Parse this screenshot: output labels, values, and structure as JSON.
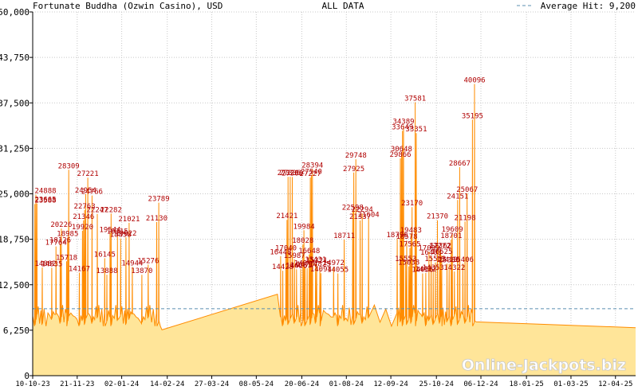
{
  "header": {
    "title": "Fortunate Buddha (Ozwin Casino), USD",
    "center_label": "ALL DATA",
    "legend_label": "Average Hit: 9,200"
  },
  "watermark": "Online-Jackpots.biz",
  "chart_data": {
    "type": "area",
    "ylim": [
      0,
      50000
    ],
    "yticks": [
      0,
      6250,
      12500,
      18750,
      25000,
      31250,
      37500,
      43750,
      50000
    ],
    "ytick_labels": [
      "0",
      "6,250",
      "12,500",
      "18,750",
      "25,000",
      "31,250",
      "37,500",
      "43,750",
      "50,000"
    ],
    "xlim": [
      "2023-10-10",
      "2025-05-01"
    ],
    "xticks": [
      {
        "date": "2023-10-10",
        "label": "10-10-23"
      },
      {
        "date": "2023-11-21",
        "label": "21-11-23"
      },
      {
        "date": "2024-01-02",
        "label": "02-01-24"
      },
      {
        "date": "2024-02-14",
        "label": "14-02-24"
      },
      {
        "date": "2024-03-27",
        "label": "27-03-24"
      },
      {
        "date": "2024-05-08",
        "label": "08-05-24"
      },
      {
        "date": "2024-06-20",
        "label": "20-06-24"
      },
      {
        "date": "2024-08-01",
        "label": "01-08-24"
      },
      {
        "date": "2024-09-12",
        "label": "12-09-24"
      },
      {
        "date": "2024-10-25",
        "label": "25-10-24"
      },
      {
        "date": "2024-12-06",
        "label": "06-12-24"
      },
      {
        "date": "2025-01-18",
        "label": "18-01-25"
      },
      {
        "date": "2025-03-01",
        "label": "01-03-25"
      },
      {
        "date": "2025-04-12",
        "label": "12-04-25"
      }
    ],
    "average_hit": 9200,
    "grid": true,
    "colors": {
      "line": "#ff8c00",
      "fill": "#ffe599",
      "average": "#5b8fb0",
      "peak_label": "#b00000",
      "grid": "#c8c8c8"
    },
    "peaks": [
      {
        "date": "2023-10-12",
        "value": 23588,
        "label": "23588"
      },
      {
        "date": "2023-10-13",
        "value": 24888,
        "label": "24888"
      },
      {
        "date": "2023-10-14",
        "value": 23665,
        "label": "23665"
      },
      {
        "date": "2023-10-19",
        "value": 14882,
        "label": "14882"
      },
      {
        "date": "2023-10-28",
        "value": 14835,
        "label": "14835"
      },
      {
        "date": "2023-11-01",
        "value": 17764,
        "label": "17764"
      },
      {
        "date": "2023-11-05",
        "value": 18126,
        "label": "18126"
      },
      {
        "date": "2023-11-06",
        "value": 20226,
        "label": "20226"
      },
      {
        "date": "2023-11-11",
        "value": 15718,
        "label": "15718"
      },
      {
        "date": "2023-11-12",
        "value": 18985,
        "label": "18985"
      },
      {
        "date": "2023-11-13",
        "value": 28309,
        "label": "28309"
      },
      {
        "date": "2023-11-23",
        "value": 14167,
        "label": "14167"
      },
      {
        "date": "2023-11-26",
        "value": 19920,
        "label": "19920"
      },
      {
        "date": "2023-11-27",
        "value": 21346,
        "label": "21346"
      },
      {
        "date": "2023-11-28",
        "value": 22763,
        "label": "22763"
      },
      {
        "date": "2023-11-29",
        "value": 24954,
        "label": "24954"
      },
      {
        "date": "2023-12-01",
        "value": 27221,
        "label": "27221"
      },
      {
        "date": "2023-12-05",
        "value": 24766,
        "label": "24766"
      },
      {
        "date": "2023-12-10",
        "value": 22247,
        "label": "22247"
      },
      {
        "date": "2023-12-17",
        "value": 16145,
        "label": "16145"
      },
      {
        "date": "2023-12-19",
        "value": 13888,
        "label": "13888"
      },
      {
        "date": "2023-12-22",
        "value": 19544,
        "label": "19544"
      },
      {
        "date": "2023-12-23",
        "value": 22282,
        "label": "22282"
      },
      {
        "date": "2023-12-29",
        "value": 19315,
        "label": "19315"
      },
      {
        "date": "2024-01-01",
        "value": 18858,
        "label": "18858"
      },
      {
        "date": "2024-01-06",
        "value": 19022,
        "label": "19022"
      },
      {
        "date": "2024-01-09",
        "value": 21021,
        "label": "21021"
      },
      {
        "date": "2024-01-12",
        "value": 14944,
        "label": "14944"
      },
      {
        "date": "2024-01-21",
        "value": 13870,
        "label": "13870"
      },
      {
        "date": "2024-01-27",
        "value": 15276,
        "label": "15276"
      },
      {
        "date": "2024-02-04",
        "value": 21130,
        "label": "21130"
      },
      {
        "date": "2024-02-06",
        "value": 23789,
        "label": "23789"
      },
      {
        "date": "2024-05-31",
        "value": 16448,
        "label": "16448"
      },
      {
        "date": "2024-06-02",
        "value": 14428,
        "label": "14428"
      },
      {
        "date": "2024-06-05",
        "value": 17040,
        "label": "17040"
      },
      {
        "date": "2024-06-06",
        "value": 21421,
        "label": "21421"
      },
      {
        "date": "2024-06-07",
        "value": 27326,
        "label": "27326"
      },
      {
        "date": "2024-06-09",
        "value": 27336,
        "label": "27336"
      },
      {
        "date": "2024-06-11",
        "value": 27306,
        "label": "27306"
      },
      {
        "date": "2024-06-13",
        "value": 15987,
        "label": "15987"
      },
      {
        "date": "2024-06-15",
        "value": 14626,
        "label": "14626"
      },
      {
        "date": "2024-06-19",
        "value": 14681,
        "label": "14681"
      },
      {
        "date": "2024-06-21",
        "value": 18028,
        "label": "18028"
      },
      {
        "date": "2024-06-22",
        "value": 19984,
        "label": "19984"
      },
      {
        "date": "2024-06-23",
        "value": 14941,
        "label": "14941"
      },
      {
        "date": "2024-06-25",
        "value": 14777,
        "label": "14777"
      },
      {
        "date": "2024-06-27",
        "value": 16648,
        "label": "16648"
      },
      {
        "date": "2024-06-28",
        "value": 27227,
        "label": "27227"
      },
      {
        "date": "2024-06-29",
        "value": 27540,
        "label": "27540"
      },
      {
        "date": "2024-06-30",
        "value": 28394,
        "label": "28394"
      },
      {
        "date": "2024-07-03",
        "value": 15431,
        "label": "15431"
      },
      {
        "date": "2024-07-04",
        "value": 15321,
        "label": "15321"
      },
      {
        "date": "2024-07-07",
        "value": 14825,
        "label": "14825"
      },
      {
        "date": "2024-07-08",
        "value": 14094,
        "label": "14094"
      },
      {
        "date": "2024-07-20",
        "value": 14972,
        "label": "14972"
      },
      {
        "date": "2024-07-24",
        "value": 14055,
        "label": "14055"
      },
      {
        "date": "2024-07-30",
        "value": 18711,
        "label": "18711"
      },
      {
        "date": "2024-08-07",
        "value": 22598,
        "label": "22598"
      },
      {
        "date": "2024-08-08",
        "value": 27925,
        "label": "27925"
      },
      {
        "date": "2024-08-10",
        "value": 29748,
        "label": "29748"
      },
      {
        "date": "2024-08-14",
        "value": 21337,
        "label": "21337"
      },
      {
        "date": "2024-08-16",
        "value": 22294,
        "label": "22294"
      },
      {
        "date": "2024-08-22",
        "value": 21604,
        "label": "21604"
      },
      {
        "date": "2024-09-18",
        "value": 18796,
        "label": "18796"
      },
      {
        "date": "2024-09-21",
        "value": 29866,
        "label": "29866"
      },
      {
        "date": "2024-09-22",
        "value": 30648,
        "label": "30648"
      },
      {
        "date": "2024-09-23",
        "value": 33649,
        "label": "33649"
      },
      {
        "date": "2024-09-24",
        "value": 34389,
        "label": "34389"
      },
      {
        "date": "2024-09-26",
        "value": 15553,
        "label": "15553"
      },
      {
        "date": "2024-09-27",
        "value": 18578,
        "label": "18578"
      },
      {
        "date": "2024-09-29",
        "value": 15038,
        "label": "15038"
      },
      {
        "date": "2024-09-30",
        "value": 17565,
        "label": "17565"
      },
      {
        "date": "2024-10-01",
        "value": 19483,
        "label": "19483"
      },
      {
        "date": "2024-10-02",
        "value": 23170,
        "label": "23170"
      },
      {
        "date": "2024-10-05",
        "value": 37581,
        "label": "37581"
      },
      {
        "date": "2024-10-06",
        "value": 33351,
        "label": "33351"
      },
      {
        "date": "2024-10-12",
        "value": 14056,
        "label": "14056"
      },
      {
        "date": "2024-10-15",
        "value": 14122,
        "label": "14122"
      },
      {
        "date": "2024-10-18",
        "value": 17039,
        "label": "17039"
      },
      {
        "date": "2024-10-20",
        "value": 16403,
        "label": "16403"
      },
      {
        "date": "2024-10-22",
        "value": 14353,
        "label": "14353"
      },
      {
        "date": "2024-10-24",
        "value": 15553,
        "label": "15553"
      },
      {
        "date": "2024-10-26",
        "value": 21370,
        "label": "21370"
      },
      {
        "date": "2024-10-28",
        "value": 17272,
        "label": "17272"
      },
      {
        "date": "2024-10-29",
        "value": 17362,
        "label": "17362"
      },
      {
        "date": "2024-10-30",
        "value": 16525,
        "label": "16525"
      },
      {
        "date": "2024-11-04",
        "value": 15410,
        "label": "15410"
      },
      {
        "date": "2024-11-06",
        "value": 15380,
        "label": "15380"
      },
      {
        "date": "2024-11-08",
        "value": 18701,
        "label": "18701"
      },
      {
        "date": "2024-11-09",
        "value": 19609,
        "label": "19609"
      },
      {
        "date": "2024-11-11",
        "value": 14322,
        "label": "14322"
      },
      {
        "date": "2024-11-14",
        "value": 24151,
        "label": "24151"
      },
      {
        "date": "2024-11-16",
        "value": 28667,
        "label": "28667"
      },
      {
        "date": "2024-11-19",
        "value": 15406,
        "label": "15406"
      },
      {
        "date": "2024-11-21",
        "value": 21198,
        "label": "21198"
      },
      {
        "date": "2024-11-23",
        "value": 25067,
        "label": "25067"
      },
      {
        "date": "2024-11-28",
        "value": 35195,
        "label": "35195"
      },
      {
        "date": "2024-11-30",
        "value": 40096,
        "label": "40096"
      }
    ]
  }
}
